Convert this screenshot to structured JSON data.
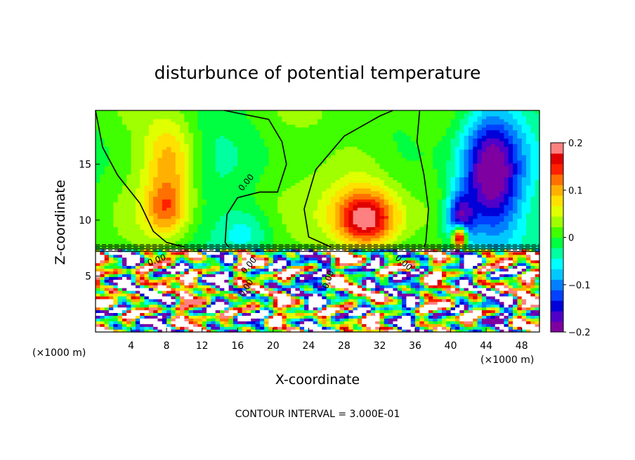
{
  "chart_data": {
    "type": "heatmap",
    "title": "disturbunce of potential temperature",
    "xlabel": "X-coordinate",
    "ylabel": "Z-coordinate",
    "x_unit_left": "(×1000 m)",
    "x_unit_right": "(×1000 m)",
    "footer": "CONTOUR INTERVAL = 3.000E-01",
    "xlim": [
      0,
      50
    ],
    "ylim": [
      0,
      19.8
    ],
    "x_ticks": [
      4,
      8,
      12,
      16,
      20,
      24,
      28,
      32,
      36,
      40,
      44,
      48
    ],
    "y_ticks": [
      5,
      10,
      15
    ],
    "contour_label": "0.00",
    "colorbar": {
      "range": [
        -0.2,
        0.2
      ],
      "ticks": [
        0.2,
        0.1,
        0,
        -0.1,
        -0.2
      ],
      "tick_labels": [
        "0.2",
        "0.1",
        "0",
        "−0.1",
        "−0.2"
      ],
      "colors": [
        "#7f00a0",
        "#5000c8",
        "#0000d8",
        "#0040ff",
        "#0080ff",
        "#00c8ff",
        "#00ffff",
        "#00ffa0",
        "#00ff40",
        "#40ff00",
        "#a0ff00",
        "#e0ff00",
        "#ffe000",
        "#ffb000",
        "#ff7000",
        "#ff2000",
        "#e00000",
        "#ff8080"
      ]
    },
    "upper_features": [
      {
        "x": 8.5,
        "z": 15.5,
        "sx": 3.0,
        "sz": 3.5,
        "amp": 0.1
      },
      {
        "x": 8.0,
        "z": 11.0,
        "sx": 2.5,
        "sz": 2.5,
        "amp": 0.1
      },
      {
        "x": 30.5,
        "z": 10.0,
        "sx": 3.5,
        "sz": 2.5,
        "amp": 0.18
      },
      {
        "x": 30.0,
        "z": 14.0,
        "sx": 4.5,
        "sz": 5.0,
        "amp": 0.06
      },
      {
        "x": 17.0,
        "z": 9.0,
        "sx": 3.0,
        "sz": 2.0,
        "amp": -0.05
      },
      {
        "x": 44.5,
        "z": 14.0,
        "sx": 3.5,
        "sz": 6.0,
        "amp": -0.21
      },
      {
        "x": 41.0,
        "z": 10.0,
        "sx": 1.6,
        "sz": 2.5,
        "amp": -0.16
      },
      {
        "x": 41.0,
        "z": 8.5,
        "sx": 0.8,
        "sz": 1.0,
        "amp": 0.3
      }
    ],
    "zero_contours": [
      [
        [
          0,
          19.8
        ],
        [
          0.8,
          16.5
        ],
        [
          2.5,
          14.0
        ],
        [
          5.0,
          11.5
        ],
        [
          6.5,
          9.0
        ],
        [
          8.0,
          8.0
        ],
        [
          10.0,
          7.6
        ]
      ],
      [
        [
          14.5,
          19.8
        ],
        [
          19.5,
          19.0
        ],
        [
          21.0,
          17.0
        ],
        [
          21.5,
          15.0
        ],
        [
          20.5,
          12.5
        ],
        [
          18.5,
          12.5
        ],
        [
          16.0,
          12.0
        ],
        [
          14.8,
          10.5
        ],
        [
          14.6,
          8.0
        ],
        [
          15.0,
          7.6
        ]
      ],
      [
        [
          26.5,
          7.6
        ],
        [
          24.0,
          8.5
        ],
        [
          23.5,
          11.0
        ],
        [
          24.8,
          14.5
        ],
        [
          28.0,
          17.5
        ],
        [
          32.0,
          19.3
        ],
        [
          33.5,
          19.8
        ]
      ],
      [
        [
          36.5,
          19.8
        ],
        [
          36.2,
          17.0
        ],
        [
          37.0,
          14.0
        ],
        [
          37.5,
          11.0
        ],
        [
          37.2,
          8.0
        ],
        [
          37.0,
          7.6
        ]
      ]
    ]
  }
}
